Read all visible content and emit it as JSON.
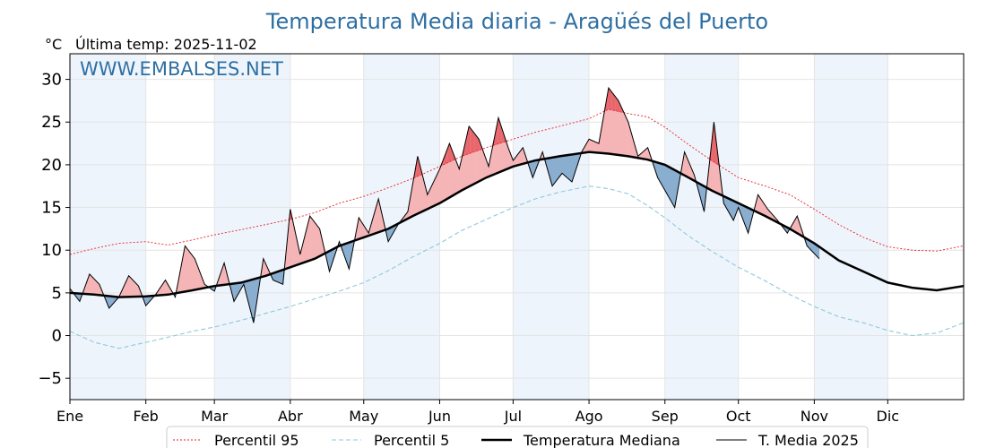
{
  "chart_data": {
    "type": "line",
    "title": "Temperatura Media diaria - Aragüés del Puerto",
    "unit_label": "°C",
    "last_temp_label": "Última temp: 2025-11-02",
    "watermark": "WWW.EMBALSES.NET",
    "ylim": [
      -7.5,
      33
    ],
    "yticks": [
      -5,
      0,
      5,
      10,
      15,
      20,
      25,
      30
    ],
    "xlim": [
      0,
      365
    ],
    "month_labels": [
      "Ene",
      "Feb",
      "Mar",
      "Abr",
      "May",
      "Jun",
      "Jul",
      "Ago",
      "Sep",
      "Oct",
      "Nov",
      "Dic"
    ],
    "month_starts": [
      0,
      31,
      59,
      90,
      120,
      151,
      181,
      212,
      243,
      273,
      304,
      334
    ],
    "grid": true,
    "legend_position": "bottom",
    "colors": {
      "title": "#2e6fa3",
      "p95": "#e8202a",
      "p5": "#8fc8dc",
      "median": "#000000",
      "media2025": "#000000",
      "warm_fill": "#f5b5b7",
      "warm_extreme": "#e8646a",
      "cold_fill": "#8aaed0",
      "cold_extreme": "#2a6aa6",
      "month_band": "#eef4fb"
    },
    "series": [
      {
        "name": "Percentil 95",
        "key": "p95",
        "x": [
          0,
          10,
          20,
          31,
          40,
          50,
          59,
          70,
          80,
          90,
          100,
          110,
          120,
          130,
          140,
          151,
          160,
          170,
          181,
          190,
          200,
          212,
          220,
          228,
          236,
          243,
          252,
          262,
          273,
          284,
          294,
          304,
          314,
          324,
          334,
          344,
          354,
          365
        ],
        "values": [
          9.5,
          10.2,
          10.8,
          11.0,
          10.6,
          11.2,
          11.8,
          12.4,
          13.0,
          13.6,
          14.4,
          15.5,
          16.3,
          17.3,
          18.4,
          19.8,
          21.0,
          22.0,
          23.0,
          23.8,
          24.5,
          25.4,
          26.5,
          26.0,
          25.6,
          24.4,
          22.5,
          20.5,
          18.5,
          17.5,
          16.5,
          14.8,
          13.0,
          11.5,
          10.4,
          10.0,
          9.9,
          10.5
        ]
      },
      {
        "name": "Percentil 5",
        "key": "p5",
        "x": [
          0,
          10,
          20,
          31,
          40,
          50,
          59,
          70,
          80,
          90,
          100,
          110,
          120,
          130,
          140,
          151,
          160,
          170,
          181,
          190,
          200,
          212,
          220,
          228,
          236,
          243,
          252,
          262,
          273,
          284,
          294,
          304,
          314,
          324,
          334,
          344,
          354,
          365
        ],
        "values": [
          0.5,
          -0.8,
          -1.5,
          -0.8,
          -0.2,
          0.5,
          1.0,
          1.8,
          2.6,
          3.4,
          4.3,
          5.2,
          6.2,
          7.6,
          9.2,
          10.8,
          12.3,
          13.6,
          15.0,
          16.0,
          16.8,
          17.5,
          17.2,
          16.6,
          15.2,
          13.8,
          11.8,
          9.9,
          8.0,
          6.4,
          4.8,
          3.4,
          2.2,
          1.5,
          0.6,
          0.0,
          0.3,
          1.5
        ]
      },
      {
        "name": "Temperatura Mediana",
        "key": "median",
        "x": [
          0,
          10,
          20,
          31,
          40,
          50,
          59,
          70,
          80,
          90,
          100,
          110,
          120,
          130,
          140,
          151,
          160,
          170,
          181,
          190,
          200,
          212,
          220,
          228,
          236,
          243,
          252,
          262,
          273,
          284,
          294,
          304,
          314,
          324,
          334,
          344,
          354,
          365
        ],
        "values": [
          5.0,
          4.8,
          4.5,
          4.6,
          4.8,
          5.3,
          5.8,
          6.2,
          7.0,
          8.0,
          9.0,
          10.5,
          11.5,
          12.5,
          14.0,
          15.5,
          17.0,
          18.5,
          19.8,
          20.5,
          21.0,
          21.5,
          21.3,
          21.0,
          20.6,
          20.0,
          18.6,
          17.0,
          15.5,
          14.0,
          12.5,
          10.8,
          8.8,
          7.5,
          6.2,
          5.6,
          5.3,
          5.8
        ]
      },
      {
        "name": "T. Media 2025",
        "key": "media2025",
        "x": [
          0,
          4,
          8,
          12,
          16,
          20,
          24,
          28,
          31,
          35,
          39,
          43,
          47,
          51,
          55,
          59,
          63,
          67,
          71,
          75,
          79,
          83,
          87,
          90,
          94,
          98,
          102,
          106,
          110,
          114,
          118,
          122,
          126,
          130,
          134,
          138,
          142,
          146,
          151,
          155,
          159,
          163,
          167,
          171,
          175,
          179,
          181,
          185,
          189,
          193,
          197,
          201,
          205,
          209,
          212,
          216,
          220,
          224,
          228,
          232,
          236,
          240,
          243,
          247,
          251,
          255,
          259,
          263,
          267,
          271,
          273,
          277,
          281,
          285,
          289,
          293,
          297,
          301,
          306
        ],
        "values": [
          5.5,
          4.0,
          7.2,
          6.0,
          3.2,
          4.5,
          7.0,
          5.8,
          3.5,
          4.8,
          6.5,
          4.5,
          10.5,
          9.0,
          6.0,
          5.2,
          8.5,
          4.0,
          6.0,
          1.5,
          9.0,
          6.5,
          6.0,
          14.8,
          9.5,
          14.0,
          12.5,
          7.5,
          11.0,
          7.8,
          13.8,
          12.0,
          16.0,
          11.0,
          13.0,
          14.5,
          21.0,
          16.5,
          19.5,
          22.5,
          19.5,
          24.5,
          23.0,
          19.8,
          25.5,
          22.0,
          20.5,
          22.0,
          18.5,
          21.5,
          17.5,
          19.0,
          18.0,
          21.5,
          23.0,
          22.5,
          29.0,
          27.5,
          25.0,
          21.0,
          22.0,
          18.5,
          17.0,
          15.0,
          21.5,
          18.8,
          14.5,
          25.0,
          15.5,
          13.5,
          15.0,
          12.0,
          16.5,
          14.8,
          13.5,
          12.0,
          14.0,
          10.5,
          9.0
        ]
      }
    ]
  }
}
